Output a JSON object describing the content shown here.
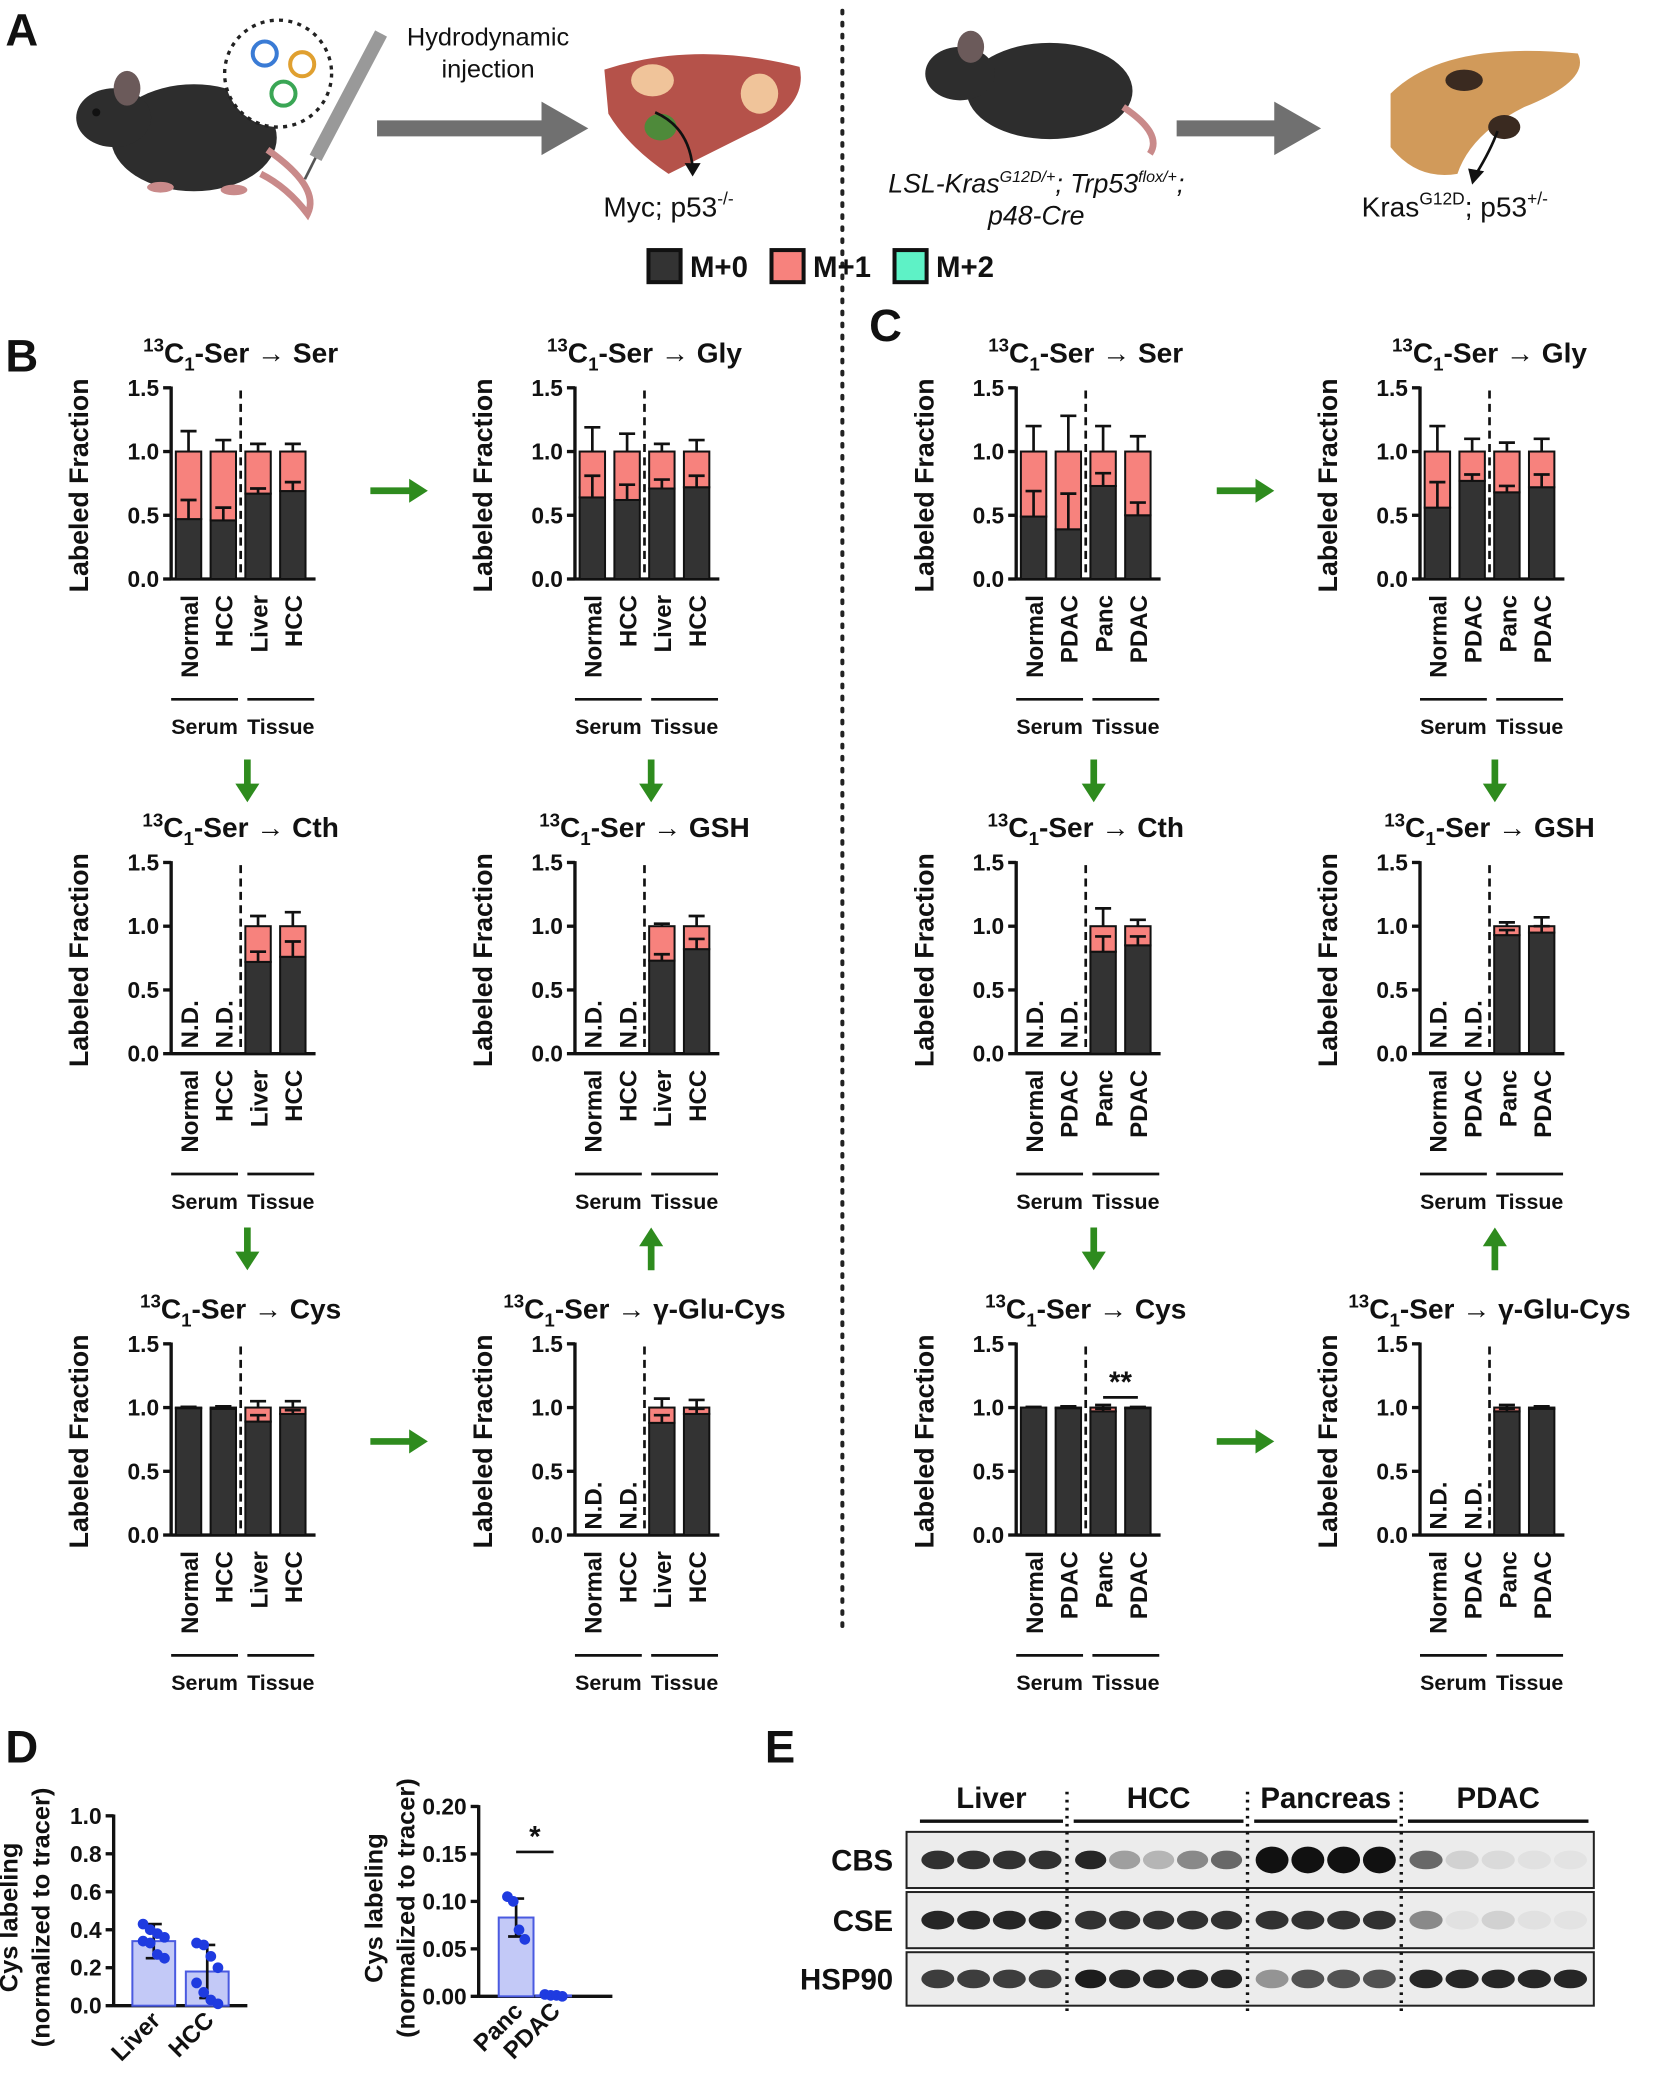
{
  "panel_labels": [
    "A",
    "B",
    "C",
    "D",
    "E"
  ],
  "schematic": {
    "injection": [
      "Hydrodynamic",
      "injection"
    ],
    "liver_model": [
      "Myc; p53",
      "-/-"
    ],
    "genotype_line1": [
      "LSL-Kras",
      "G12D/+",
      "; Trp53",
      "flox/+",
      ";"
    ],
    "genotype_line2": "p48-Cre",
    "pancreas_model": [
      "Kras",
      "G12D",
      "; p53",
      "+/-"
    ]
  },
  "legend": [
    {
      "name": "M+0",
      "color": "#333333"
    },
    {
      "name": "M+1",
      "color": "#f7827d"
    },
    {
      "name": "M+2",
      "color": "#5ef2c6"
    }
  ],
  "chart_data": [
    {
      "type": "stacked-bar",
      "title_parts": [
        "13",
        "C",
        "1",
        "-Ser → Ser"
      ],
      "ylabel": "Labeled Fraction",
      "categories": [
        "Normal",
        "HCC",
        "Liver",
        "HCC"
      ],
      "groups": [
        "Serum",
        "Tissue"
      ],
      "series": [
        {
          "color": "#333333",
          "values": [
            0.47,
            0.46,
            0.67,
            0.69
          ],
          "errors": [
            0.15,
            0.1,
            0.04,
            0.07
          ]
        },
        {
          "color": "#f7827d",
          "values": [
            0.53,
            0.54,
            0.33,
            0.31
          ],
          "errors": [
            0.16,
            0.09,
            0.06,
            0.06
          ]
        }
      ],
      "ylim": [
        0,
        1.5
      ],
      "yticks": [
        {
          "value": 0,
          "label": "0.0"
        },
        {
          "value": 0.5,
          "label": "0.5"
        },
        {
          "value": 1,
          "label": "1.0"
        },
        {
          "value": 1.5,
          "label": "1.5"
        }
      ]
    },
    {
      "type": "stacked-bar",
      "title_parts": [
        "13",
        "C",
        "1",
        "-Ser → Gly"
      ],
      "ylabel": "Labeled Fraction",
      "categories": [
        "Normal",
        "HCC",
        "Liver",
        "HCC"
      ],
      "groups": [
        "Serum",
        "Tissue"
      ],
      "series": [
        {
          "color": "#333333",
          "values": [
            0.64,
            0.62,
            0.71,
            0.72
          ],
          "errors": [
            0.17,
            0.12,
            0.07,
            0.09
          ]
        },
        {
          "color": "#f7827d",
          "values": [
            0.36,
            0.38,
            0.29,
            0.28
          ],
          "errors": [
            0.19,
            0.14,
            0.06,
            0.09
          ]
        }
      ],
      "ylim": [
        0,
        1.5
      ],
      "yticks": [
        {
          "value": 0,
          "label": "0.0"
        },
        {
          "value": 0.5,
          "label": "0.5"
        },
        {
          "value": 1,
          "label": "1.0"
        },
        {
          "value": 1.5,
          "label": "1.5"
        }
      ]
    },
    {
      "type": "stacked-bar",
      "title_parts": [
        "13",
        "C",
        "1",
        "-Ser → Cth"
      ],
      "ylabel": "Labeled Fraction",
      "categories": [
        "Normal",
        "HCC",
        "Liver",
        "HCC"
      ],
      "groups": [
        "Serum",
        "Tissue"
      ],
      "series": [
        {
          "color": "#333333",
          "values": [
            null,
            null,
            0.72,
            0.76
          ],
          "errors": [
            null,
            null,
            0.08,
            0.12
          ],
          "value_labels": [
            "N.D.",
            "N.D.",
            null,
            null
          ]
        },
        {
          "color": "#f7827d",
          "values": [
            null,
            null,
            0.28,
            0.24
          ],
          "errors": [
            null,
            null,
            0.08,
            0.11
          ]
        }
      ],
      "ylim": [
        0,
        1.5
      ],
      "yticks": [
        {
          "value": 0,
          "label": "0.0"
        },
        {
          "value": 0.5,
          "label": "0.5"
        },
        {
          "value": 1,
          "label": "1.0"
        },
        {
          "value": 1.5,
          "label": "1.5"
        }
      ]
    },
    {
      "type": "stacked-bar",
      "title_parts": [
        "13",
        "C",
        "1",
        "-Ser → GSH"
      ],
      "ylabel": "Labeled Fraction",
      "categories": [
        "Normal",
        "HCC",
        "Liver",
        "HCC"
      ],
      "groups": [
        "Serum",
        "Tissue"
      ],
      "series": [
        {
          "color": "#333333",
          "values": [
            null,
            null,
            0.73,
            0.82
          ],
          "errors": [
            null,
            null,
            0.05,
            0.08
          ],
          "value_labels": [
            "N.D.",
            "N.D.",
            null,
            null
          ]
        },
        {
          "color": "#f7827d",
          "values": [
            null,
            null,
            0.27,
            0.18
          ],
          "errors": [
            null,
            null,
            0.02,
            0.08
          ]
        }
      ],
      "ylim": [
        0,
        1.5
      ],
      "yticks": [
        {
          "value": 0,
          "label": "0.0"
        },
        {
          "value": 0.5,
          "label": "0.5"
        },
        {
          "value": 1,
          "label": "1.0"
        },
        {
          "value": 1.5,
          "label": "1.5"
        }
      ]
    },
    {
      "type": "stacked-bar",
      "title_parts": [
        "13",
        "C",
        "1",
        "-Ser → Cys"
      ],
      "ylabel": "Labeled Fraction",
      "categories": [
        "Normal",
        "HCC",
        "Liver",
        "HCC"
      ],
      "groups": [
        "Serum",
        "Tissue"
      ],
      "series": [
        {
          "color": "#333333",
          "values": [
            0.995,
            0.99,
            0.89,
            0.95
          ],
          "errors": [
            0.01,
            0.02,
            0.05,
            0.03
          ]
        },
        {
          "color": "#f7827d",
          "values": [
            0.005,
            0.01,
            0.11,
            0.05
          ],
          "errors": [
            0.005,
            0.01,
            0.05,
            0.05
          ]
        }
      ],
      "ylim": [
        0,
        1.5
      ],
      "yticks": [
        {
          "value": 0,
          "label": "0.0"
        },
        {
          "value": 0.5,
          "label": "0.5"
        },
        {
          "value": 1,
          "label": "1.0"
        },
        {
          "value": 1.5,
          "label": "1.5"
        }
      ]
    },
    {
      "type": "stacked-bar",
      "title_parts": [
        "13",
        "C",
        "1",
        "-Ser → γ-Glu-Cys"
      ],
      "ylabel": "Labeled Fraction",
      "categories": [
        "Normal",
        "HCC",
        "Liver",
        "HCC"
      ],
      "groups": [
        "Serum",
        "Tissue"
      ],
      "series": [
        {
          "color": "#333333",
          "values": [
            null,
            null,
            0.88,
            0.95
          ],
          "errors": [
            null,
            null,
            0.06,
            0.04
          ],
          "value_labels": [
            "N.D.",
            "N.D.",
            null,
            null
          ]
        },
        {
          "color": "#f7827d",
          "values": [
            null,
            null,
            0.12,
            0.05
          ],
          "errors": [
            null,
            null,
            0.07,
            0.06
          ]
        }
      ],
      "ylim": [
        0,
        1.5
      ],
      "yticks": [
        {
          "value": 0,
          "label": "0.0"
        },
        {
          "value": 0.5,
          "label": "0.5"
        },
        {
          "value": 1,
          "label": "1.0"
        },
        {
          "value": 1.5,
          "label": "1.5"
        }
      ]
    },
    {
      "type": "stacked-bar",
      "title_parts": [
        "13",
        "C",
        "1",
        "-Ser → Ser"
      ],
      "ylabel": "Labeled Fraction",
      "categories": [
        "Normal",
        "PDAC",
        "Panc",
        "PDAC"
      ],
      "groups": [
        "Serum",
        "Tissue"
      ],
      "series": [
        {
          "color": "#333333",
          "values": [
            0.49,
            0.39,
            0.73,
            0.5
          ],
          "errors": [
            0.2,
            0.28,
            0.1,
            0.1
          ]
        },
        {
          "color": "#f7827d",
          "values": [
            0.51,
            0.61,
            0.27,
            0.5
          ],
          "errors": [
            0.2,
            0.28,
            0.2,
            0.12
          ]
        }
      ],
      "ylim": [
        0,
        1.5
      ],
      "yticks": [
        {
          "value": 0,
          "label": "0.0"
        },
        {
          "value": 0.5,
          "label": "0.5"
        },
        {
          "value": 1,
          "label": "1.0"
        },
        {
          "value": 1.5,
          "label": "1.5"
        }
      ]
    },
    {
      "type": "stacked-bar",
      "title_parts": [
        "13",
        "C",
        "1",
        "-Ser → Gly"
      ],
      "ylabel": "Labeled Fraction",
      "categories": [
        "Normal",
        "PDAC",
        "Panc",
        "PDAC"
      ],
      "groups": [
        "Serum",
        "Tissue"
      ],
      "series": [
        {
          "color": "#333333",
          "values": [
            0.56,
            0.77,
            0.68,
            0.72
          ],
          "errors": [
            0.2,
            0.05,
            0.05,
            0.1
          ]
        },
        {
          "color": "#f7827d",
          "values": [
            0.44,
            0.23,
            0.32,
            0.28
          ],
          "errors": [
            0.2,
            0.1,
            0.07,
            0.1
          ]
        }
      ],
      "ylim": [
        0,
        1.5
      ],
      "yticks": [
        {
          "value": 0,
          "label": "0.0"
        },
        {
          "value": 0.5,
          "label": "0.5"
        },
        {
          "value": 1,
          "label": "1.0"
        },
        {
          "value": 1.5,
          "label": "1.5"
        }
      ]
    },
    {
      "type": "stacked-bar",
      "title_parts": [
        "13",
        "C",
        "1",
        "-Ser → Cth"
      ],
      "ylabel": "Labeled Fraction",
      "categories": [
        "Normal",
        "PDAC",
        "Panc",
        "PDAC"
      ],
      "groups": [
        "Serum",
        "Tissue"
      ],
      "series": [
        {
          "color": "#333333",
          "values": [
            null,
            null,
            0.8,
            0.85
          ],
          "errors": [
            null,
            null,
            0.12,
            0.07
          ],
          "value_labels": [
            "N.D.",
            "N.D.",
            null,
            null
          ]
        },
        {
          "color": "#f7827d",
          "values": [
            null,
            null,
            0.2,
            0.15
          ],
          "errors": [
            null,
            null,
            0.14,
            0.05
          ]
        }
      ],
      "ylim": [
        0,
        1.5
      ],
      "yticks": [
        {
          "value": 0,
          "label": "0.0"
        },
        {
          "value": 0.5,
          "label": "0.5"
        },
        {
          "value": 1,
          "label": "1.0"
        },
        {
          "value": 1.5,
          "label": "1.5"
        }
      ]
    },
    {
      "type": "stacked-bar",
      "title_parts": [
        "13",
        "C",
        "1",
        "-Ser → GSH"
      ],
      "ylabel": "Labeled Fraction",
      "categories": [
        "Normal",
        "PDAC",
        "Panc",
        "PDAC"
      ],
      "groups": [
        "Serum",
        "Tissue"
      ],
      "series": [
        {
          "color": "#333333",
          "values": [
            null,
            null,
            0.93,
            0.95
          ],
          "errors": [
            null,
            null,
            0.04,
            0.05
          ],
          "value_labels": [
            "N.D.",
            "N.D.",
            null,
            null
          ]
        },
        {
          "color": "#f7827d",
          "values": [
            null,
            null,
            0.07,
            0.05
          ],
          "errors": [
            null,
            null,
            0.03,
            0.07
          ]
        }
      ],
      "ylim": [
        0,
        1.5
      ],
      "yticks": [
        {
          "value": 0,
          "label": "0.0"
        },
        {
          "value": 0.5,
          "label": "0.5"
        },
        {
          "value": 1,
          "label": "1.0"
        },
        {
          "value": 1.5,
          "label": "1.5"
        }
      ]
    },
    {
      "type": "stacked-bar",
      "title_parts": [
        "13",
        "C",
        "1",
        "-Ser → Cys"
      ],
      "ylabel": "Labeled Fraction",
      "categories": [
        "Normal",
        "PDAC",
        "Panc",
        "PDAC"
      ],
      "groups": [
        "Serum",
        "Tissue"
      ],
      "annotation": "**",
      "series": [
        {
          "color": "#333333",
          "values": [
            1.0,
            0.995,
            0.97,
            0.995
          ],
          "errors": [
            0.005,
            0.01,
            0.02,
            0.005
          ]
        },
        {
          "color": "#f7827d",
          "values": [
            0,
            0.005,
            0.03,
            0.005
          ],
          "errors": [
            0.003,
            0.01,
            0.02,
            0.005
          ]
        }
      ],
      "ylim": [
        0,
        1.5
      ],
      "yticks": [
        {
          "value": 0,
          "label": "0.0"
        },
        {
          "value": 0.5,
          "label": "0.5"
        },
        {
          "value": 1,
          "label": "1.0"
        },
        {
          "value": 1.5,
          "label": "1.5"
        }
      ]
    },
    {
      "type": "stacked-bar",
      "title_parts": [
        "13",
        "C",
        "1",
        "-Ser → γ-Glu-Cys"
      ],
      "ylabel": "Labeled Fraction",
      "categories": [
        "Normal",
        "PDAC",
        "Panc",
        "PDAC"
      ],
      "groups": [
        "Serum",
        "Tissue"
      ],
      "series": [
        {
          "color": "#333333",
          "values": [
            null,
            null,
            0.97,
            0.99
          ],
          "errors": [
            null,
            null,
            0.02,
            0.01
          ],
          "value_labels": [
            "N.D.",
            "N.D.",
            null,
            null
          ]
        },
        {
          "color": "#f7827d",
          "values": [
            null,
            null,
            0.03,
            0.01
          ],
          "errors": [
            null,
            null,
            0.02,
            0.01
          ]
        }
      ],
      "ylim": [
        0,
        1.5
      ],
      "yticks": [
        {
          "value": 0,
          "label": "0.0"
        },
        {
          "value": 0.5,
          "label": "0.5"
        },
        {
          "value": 1,
          "label": "1.0"
        },
        {
          "value": 1.5,
          "label": "1.5"
        }
      ]
    },
    {
      "type": "bar-scatter",
      "ylabel": [
        "Cys labeling",
        "(normalized to tracer)"
      ],
      "categories": [
        "Liver",
        "HCC"
      ],
      "values": [
        0.34,
        0.18
      ],
      "errors": [
        0.09,
        0.14
      ],
      "points": [
        [
          0.43,
          0.4,
          0.38,
          0.36,
          0.34,
          0.33,
          0.27,
          0.25
        ],
        [
          0.33,
          0.32,
          0.26,
          0.2,
          0.12,
          0.07,
          0.03,
          0.01
        ]
      ],
      "color": "#c3c9f7",
      "point_color": "#1f3be0",
      "ylim": [
        0,
        1
      ],
      "yticks": [
        {
          "value": 0,
          "label": "0.0"
        },
        {
          "value": 0.2,
          "label": "0.2"
        },
        {
          "value": 0.4,
          "label": "0.4"
        },
        {
          "value": 0.6,
          "label": "0.6"
        },
        {
          "value": 0.8,
          "label": "0.8"
        },
        {
          "value": 1,
          "label": "1.0"
        }
      ]
    },
    {
      "type": "bar-scatter",
      "ylabel": [
        "Cys labeling",
        "(normalized to tracer)"
      ],
      "annotation": "*",
      "categories": [
        "Panc",
        "PDAC"
      ],
      "values": [
        0.083,
        0.001
      ],
      "errors": [
        0.02,
        0.001
      ],
      "points": [
        [
          0.105,
          0.1,
          0.07,
          0.06
        ],
        [
          0.002,
          0.001,
          0.001,
          0
        ]
      ],
      "color": "#c3c9f7",
      "point_color": "#1f3be0",
      "ylim": [
        0,
        0.2
      ],
      "yticks": [
        {
          "value": 0,
          "label": "0.00"
        },
        {
          "value": 0.05,
          "label": "0.05"
        },
        {
          "value": 0.1,
          "label": "0.10"
        },
        {
          "value": 0.15,
          "label": "0.15"
        },
        {
          "value": 0.2,
          "label": "0.20"
        }
      ]
    }
  ],
  "blot": {
    "groups": [
      "Liver",
      "HCC",
      "Pancreas",
      "PDAC"
    ],
    "rows": [
      "CBS",
      "CSE",
      "HSP90"
    ]
  }
}
